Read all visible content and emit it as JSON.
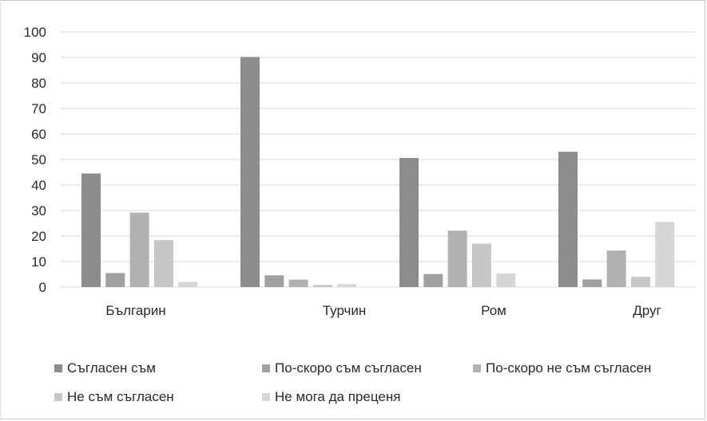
{
  "chart_data": {
    "type": "bar",
    "categories": [
      "Българин",
      "Турчин",
      "Ром",
      "Друг"
    ],
    "series": [
      {
        "name": "Съгласен съм",
        "color": "#8c8c8c",
        "values": [
          44.5,
          90.2,
          50.6,
          53.0
        ]
      },
      {
        "name": "По-скоро съм съгласен",
        "color": "#a0a0a0",
        "values": [
          5.5,
          4.6,
          5.1,
          3.0
        ]
      },
      {
        "name": "По-скоро не съм съгласен",
        "color": "#b1b1b1",
        "values": [
          29.2,
          2.9,
          22.1,
          14.3
        ]
      },
      {
        "name": "Не съм съгласен",
        "color": "#c6c6c6",
        "values": [
          18.4,
          0.8,
          17.0,
          4.0
        ]
      },
      {
        "name": "Не мога да преценя",
        "color": "#d6d6d6",
        "values": [
          2.0,
          1.2,
          5.3,
          25.5
        ]
      }
    ],
    "yticks": [
      "0",
      "10",
      "20",
      "30",
      "40",
      "50",
      "60",
      "70",
      "80",
      "90",
      "100"
    ],
    "ylim": [
      0,
      100
    ],
    "grid": true,
    "legend_position": "bottom"
  }
}
